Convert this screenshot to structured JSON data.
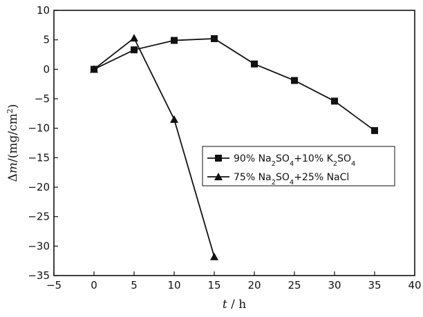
{
  "chart_data": {
    "type": "line",
    "xlabel": "t / h",
    "ylabel": "Δm/(mg/cm²)",
    "xlim": [
      -5,
      40
    ],
    "ylim": [
      -35,
      10
    ],
    "xticks": [
      -5,
      0,
      5,
      10,
      15,
      20,
      25,
      30,
      35,
      40
    ],
    "yticks": [
      10,
      5,
      0,
      -5,
      -10,
      -15,
      -20,
      -25,
      -30,
      -35
    ],
    "xtick_labels": [
      "−5",
      "0",
      "5",
      "10",
      "15",
      "20",
      "25",
      "30",
      "35",
      "40"
    ],
    "ytick_labels": [
      "10",
      "5",
      "0",
      "−5",
      "−10",
      "−15",
      "−20",
      "−25",
      "−30",
      "−35"
    ],
    "grid": false,
    "legend_position": "middle-right",
    "series": [
      {
        "name": "90% Na2SO4+10% K2SO4",
        "marker": "square",
        "x": [
          0,
          5,
          10,
          15,
          20,
          25,
          30,
          35
        ],
        "y": [
          0,
          3.3,
          4.9,
          5.2,
          0.9,
          -1.9,
          -5.4,
          -10.4
        ]
      },
      {
        "name": "75% Na2SO4+25% NaCl",
        "marker": "triangle",
        "x": [
          0,
          5,
          10,
          15
        ],
        "y": [
          0,
          5.3,
          -8.5,
          -31.8
        ]
      }
    ]
  }
}
